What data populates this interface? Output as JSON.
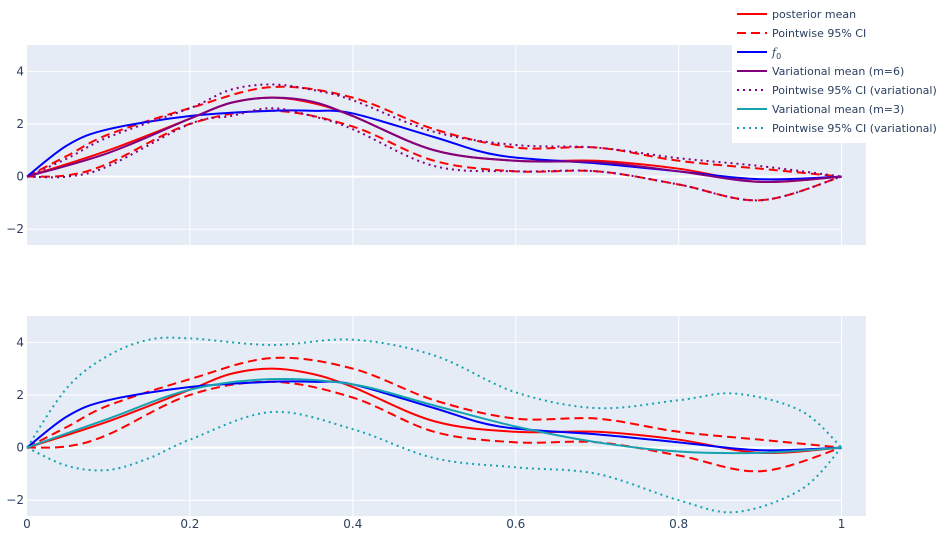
{
  "colors": {
    "posterior": "#ff0000",
    "f0": "#0000ff",
    "variational6": "#800080",
    "variational3": "#17a2b0",
    "plot_bg": "#e5ecf6",
    "grid": "#ffffff",
    "tick_text": "#2a3f5f"
  },
  "legend": [
    {
      "label": "posterior mean",
      "color": "#ff0000",
      "dash": "solid"
    },
    {
      "label": "Pointwise 95% CI",
      "color": "#ff0000",
      "dash": "dash"
    },
    {
      "label": "f_0",
      "color": "#0000ff",
      "dash": "solid",
      "math": true
    },
    {
      "label": "Variational mean (m=6)",
      "color": "#800080",
      "dash": "solid"
    },
    {
      "label": "Pointwise 95% CI (variational)",
      "color": "#800080",
      "dash": "dot"
    },
    {
      "label": "Variational mean (m=3)",
      "color": "#17a2b0",
      "dash": "solid"
    },
    {
      "label": "Pointwise 95% CI (variational)",
      "color": "#17a2b0",
      "dash": "dot"
    }
  ],
  "chart_data": [
    {
      "type": "line",
      "xlim": [
        0,
        1.03
      ],
      "ylim": [
        -2.6,
        5.0
      ],
      "xticks": [
        0,
        0.2,
        0.4,
        0.6,
        0.8,
        1
      ],
      "xtick_labels": [],
      "yticks": [
        -2,
        0,
        2,
        4
      ],
      "ytick_labels": [
        "−2",
        "0",
        "2",
        "4"
      ],
      "grid": true,
      "series": [
        {
          "name": "posterior mean",
          "color": "#ff0000",
          "dash": "solid",
          "x": [
            0,
            0.1,
            0.2,
            0.25,
            0.3,
            0.35,
            0.4,
            0.5,
            0.6,
            0.7,
            0.8,
            0.9,
            1
          ],
          "y": [
            0,
            1.0,
            2.2,
            2.8,
            3.0,
            2.8,
            2.3,
            1.0,
            0.6,
            0.6,
            0.3,
            -0.2,
            0
          ]
        },
        {
          "name": "Pointwise 95% CI",
          "color": "#ff0000",
          "dash": "dash",
          "x": [
            0,
            0.05,
            0.1,
            0.2,
            0.3,
            0.4,
            0.5,
            0.6,
            0.7,
            0.8,
            0.9,
            1
          ],
          "y": [
            0,
            0.8,
            1.6,
            2.6,
            3.4,
            3.0,
            1.8,
            1.1,
            1.1,
            0.6,
            0.3,
            0
          ]
        },
        {
          "name": "Pointwise 95% CI",
          "color": "#ff0000",
          "dash": "dash",
          "x": [
            0,
            0.05,
            0.1,
            0.2,
            0.3,
            0.4,
            0.5,
            0.6,
            0.7,
            0.8,
            0.9,
            1
          ],
          "y": [
            0,
            0.05,
            0.5,
            2.0,
            2.5,
            1.9,
            0.6,
            0.2,
            0.2,
            -0.3,
            -0.9,
            0
          ]
        },
        {
          "name": "f_0",
          "color": "#0000ff",
          "dash": "solid",
          "x": [
            0,
            0.05,
            0.1,
            0.2,
            0.3,
            0.35,
            0.4,
            0.5,
            0.58,
            0.7,
            0.8,
            0.9,
            1
          ],
          "y": [
            0,
            1.2,
            1.8,
            2.3,
            2.5,
            2.5,
            2.4,
            1.5,
            0.8,
            0.5,
            0.2,
            -0.1,
            0
          ]
        },
        {
          "name": "Variational mean (m=6)",
          "color": "#800080",
          "dash": "solid",
          "x": [
            0,
            0.1,
            0.2,
            0.25,
            0.3,
            0.35,
            0.4,
            0.5,
            0.6,
            0.7,
            0.8,
            0.9,
            1
          ],
          "y": [
            0,
            0.9,
            2.2,
            2.8,
            3.0,
            2.85,
            2.3,
            1.0,
            0.6,
            0.55,
            0.2,
            -0.2,
            0
          ]
        },
        {
          "name": "Pointwise 95% CI (variational)",
          "color": "#800080",
          "dash": "dot",
          "x": [
            0,
            0.05,
            0.1,
            0.2,
            0.25,
            0.3,
            0.35,
            0.4,
            0.5,
            0.6,
            0.7,
            0.8,
            0.9,
            1
          ],
          "y": [
            0,
            0.7,
            1.5,
            2.6,
            3.3,
            3.5,
            3.3,
            2.9,
            1.7,
            1.2,
            1.1,
            0.7,
            0.4,
            0
          ]
        },
        {
          "name": "Pointwise 95% CI (variational)",
          "color": "#800080",
          "dash": "dot",
          "x": [
            0,
            0.05,
            0.1,
            0.2,
            0.25,
            0.3,
            0.35,
            0.4,
            0.5,
            0.6,
            0.7,
            0.8,
            0.9,
            1
          ],
          "y": [
            0,
            0.0,
            0.4,
            2.0,
            2.3,
            2.6,
            2.3,
            1.8,
            0.4,
            0.2,
            0.2,
            -0.3,
            -0.9,
            0
          ]
        }
      ]
    },
    {
      "type": "line",
      "xlim": [
        0,
        1.03
      ],
      "ylim": [
        -2.6,
        5.0
      ],
      "xticks": [
        0,
        0.2,
        0.4,
        0.6,
        0.8,
        1
      ],
      "xtick_labels": [
        "0",
        "0.2",
        "0.4",
        "0.6",
        "0.8",
        "1"
      ],
      "yticks": [
        -2,
        0,
        2,
        4
      ],
      "ytick_labels": [
        "−2",
        "0",
        "2",
        "4"
      ],
      "grid": true,
      "series": [
        {
          "name": "posterior mean",
          "color": "#ff0000",
          "dash": "solid",
          "x": [
            0,
            0.1,
            0.2,
            0.25,
            0.3,
            0.35,
            0.4,
            0.5,
            0.6,
            0.7,
            0.8,
            0.9,
            1
          ],
          "y": [
            0,
            1.0,
            2.2,
            2.8,
            3.0,
            2.8,
            2.3,
            1.0,
            0.6,
            0.6,
            0.3,
            -0.2,
            0
          ]
        },
        {
          "name": "Pointwise 95% CI",
          "color": "#ff0000",
          "dash": "dash",
          "x": [
            0,
            0.05,
            0.1,
            0.2,
            0.3,
            0.4,
            0.5,
            0.6,
            0.7,
            0.8,
            0.9,
            1
          ],
          "y": [
            0,
            0.8,
            1.6,
            2.6,
            3.4,
            3.0,
            1.8,
            1.1,
            1.1,
            0.6,
            0.3,
            0
          ]
        },
        {
          "name": "Pointwise 95% CI",
          "color": "#ff0000",
          "dash": "dash",
          "x": [
            0,
            0.05,
            0.1,
            0.2,
            0.3,
            0.4,
            0.5,
            0.6,
            0.7,
            0.8,
            0.9,
            1
          ],
          "y": [
            0,
            0.05,
            0.5,
            2.0,
            2.5,
            1.9,
            0.6,
            0.2,
            0.2,
            -0.3,
            -0.9,
            0
          ]
        },
        {
          "name": "f_0",
          "color": "#0000ff",
          "dash": "solid",
          "x": [
            0,
            0.05,
            0.1,
            0.2,
            0.3,
            0.35,
            0.4,
            0.5,
            0.58,
            0.7,
            0.8,
            0.9,
            1
          ],
          "y": [
            0,
            1.2,
            1.8,
            2.3,
            2.5,
            2.5,
            2.4,
            1.5,
            0.8,
            0.5,
            0.2,
            -0.1,
            0
          ]
        },
        {
          "name": "Variational mean (m=3)",
          "color": "#17a2b0",
          "dash": "solid",
          "x": [
            0,
            0.1,
            0.2,
            0.3,
            0.4,
            0.5,
            0.6,
            0.7,
            0.8,
            0.9,
            1
          ],
          "y": [
            0,
            1.1,
            2.2,
            2.6,
            2.4,
            1.6,
            0.8,
            0.2,
            -0.15,
            -0.2,
            0
          ]
        },
        {
          "name": "Pointwise 95% CI (variational)",
          "color": "#17a2b0",
          "dash": "dot",
          "x": [
            0,
            0.05,
            0.1,
            0.15,
            0.2,
            0.3,
            0.4,
            0.5,
            0.6,
            0.7,
            0.8,
            0.87,
            0.95,
            1
          ],
          "y": [
            0,
            2.3,
            3.5,
            4.1,
            4.15,
            3.9,
            4.1,
            3.5,
            2.1,
            1.5,
            1.8,
            2.05,
            1.4,
            0
          ]
        },
        {
          "name": "Pointwise 95% CI (variational)",
          "color": "#17a2b0",
          "dash": "dot",
          "x": [
            0,
            0.05,
            0.1,
            0.15,
            0.2,
            0.3,
            0.4,
            0.5,
            0.6,
            0.7,
            0.8,
            0.87,
            0.95,
            1
          ],
          "y": [
            0,
            -0.7,
            -0.85,
            -0.4,
            0.3,
            1.35,
            0.7,
            -0.4,
            -0.75,
            -1.0,
            -2.0,
            -2.45,
            -1.6,
            0
          ]
        }
      ]
    }
  ]
}
